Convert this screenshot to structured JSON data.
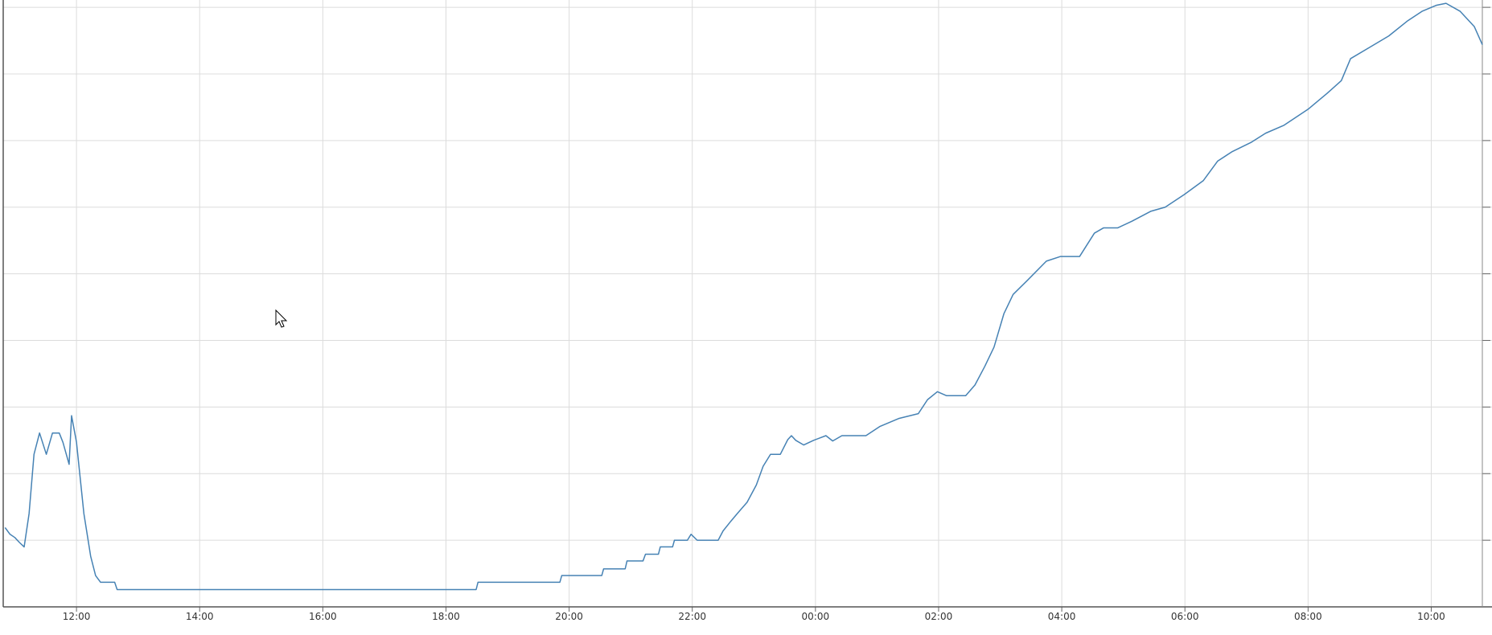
{
  "chart_data": {
    "type": "line",
    "x": [
      10.84,
      10.92,
      11.0,
      11.07,
      11.15,
      11.23,
      11.31,
      11.4,
      11.51,
      11.61,
      11.72,
      11.78,
      11.88,
      11.92,
      12.0,
      12.12,
      12.23,
      12.31,
      12.39,
      12.62,
      12.66,
      18.49,
      18.52,
      19.85,
      19.88,
      20.53,
      20.56,
      20.91,
      20.94,
      21.2,
      21.24,
      21.45,
      21.48,
      21.68,
      21.71,
      21.92,
      21.98,
      22.08,
      22.42,
      22.5,
      22.63,
      22.73,
      22.89,
      23.04,
      23.15,
      23.27,
      23.43,
      23.55,
      23.61,
      23.68,
      23.81,
      23.97,
      24.17,
      24.28,
      24.43,
      24.82,
      25.05,
      25.36,
      25.67,
      25.82,
      25.98,
      26.13,
      26.44,
      26.59,
      26.75,
      26.9,
      27.06,
      27.21,
      27.44,
      27.75,
      27.98,
      28.29,
      28.53,
      28.68,
      28.91,
      29.14,
      29.45,
      29.68,
      29.99,
      30.3,
      30.53,
      30.76,
      31.07,
      31.31,
      31.61,
      32.0,
      32.31,
      32.54,
      32.69,
      33.0,
      33.31,
      33.62,
      33.85,
      34.08,
      34.24,
      34.47,
      34.7,
      34.83
    ],
    "series": [
      {
        "color": "#4682b4",
        "values": [
          1.19,
          1.09,
          1.04,
          0.97,
          0.9,
          1.4,
          2.29,
          2.61,
          2.29,
          2.61,
          2.61,
          2.47,
          2.14,
          2.87,
          2.47,
          1.4,
          0.76,
          0.47,
          0.37,
          0.37,
          0.26,
          0.26,
          0.37,
          0.37,
          0.47,
          0.47,
          0.57,
          0.57,
          0.69,
          0.69,
          0.79,
          0.79,
          0.9,
          0.9,
          1.0,
          1.0,
          1.09,
          1.0,
          1.0,
          1.14,
          1.29,
          1.4,
          1.57,
          1.83,
          2.11,
          2.29,
          2.29,
          2.51,
          2.57,
          2.5,
          2.43,
          2.5,
          2.57,
          2.49,
          2.57,
          2.57,
          2.71,
          2.83,
          2.9,
          3.11,
          3.23,
          3.17,
          3.17,
          3.33,
          3.61,
          3.9,
          4.4,
          4.69,
          4.9,
          5.19,
          5.26,
          5.26,
          5.61,
          5.69,
          5.69,
          5.79,
          5.94,
          6.0,
          6.19,
          6.4,
          6.69,
          6.83,
          6.97,
          7.11,
          7.23,
          7.47,
          7.71,
          7.9,
          8.23,
          8.4,
          8.57,
          8.8,
          8.94,
          9.03,
          9.06,
          8.94,
          8.71,
          8.44
        ]
      }
    ],
    "xlim": [
      10.81,
      34.83
    ],
    "xticks": [
      {
        "value": 12,
        "label": "12:00"
      },
      {
        "value": 14,
        "label": "14:00"
      },
      {
        "value": 16,
        "label": "16:00"
      },
      {
        "value": 18,
        "label": "18:00"
      },
      {
        "value": 20,
        "label": "20:00"
      },
      {
        "value": 22,
        "label": "22:00"
      },
      {
        "value": 24,
        "label": "00:00"
      },
      {
        "value": 26,
        "label": "02:00"
      },
      {
        "value": 28,
        "label": "04:00"
      },
      {
        "value": 30,
        "label": "06:00"
      },
      {
        "value": 32,
        "label": "08:00"
      },
      {
        "value": 34,
        "label": "10:00"
      }
    ],
    "ylim": [
      0,
      9.11
    ],
    "yticks": [
      0,
      1,
      2,
      3,
      4,
      5,
      6,
      7,
      8,
      9
    ],
    "grid": true
  }
}
